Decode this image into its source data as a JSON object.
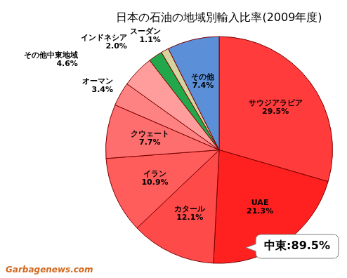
{
  "chart_data": {
    "type": "pie",
    "title": "日本の石油の地域別輸入比率(2009年度)",
    "categories": [
      "サウジアラビア",
      "UAE",
      "カタール",
      "イラン",
      "クウェート",
      "オーマン",
      "その他中東地域",
      "インドネシア",
      "スーダン",
      "その他"
    ],
    "values": [
      29.5,
      21.3,
      12.1,
      10.9,
      7.7,
      3.4,
      4.6,
      2.0,
      1.1,
      7.4
    ],
    "value_labels": [
      "29.5%",
      "21.3%",
      "12.1%",
      "10.9%",
      "7.7%",
      "3.4%",
      "4.6%",
      "2.0%",
      "1.1%",
      "7.4%"
    ],
    "colors": [
      "#ff3b3b",
      "#ff2020",
      "#ff4a4a",
      "#ff5c5c",
      "#ff6e6e",
      "#ff8282",
      "#ff9c9c",
      "#22a84a",
      "#d6d3a0",
      "#5b8fd8"
    ],
    "data_labels": true,
    "annotations": [
      "中東:89.5%"
    ],
    "source": "Garbagenews.com"
  }
}
